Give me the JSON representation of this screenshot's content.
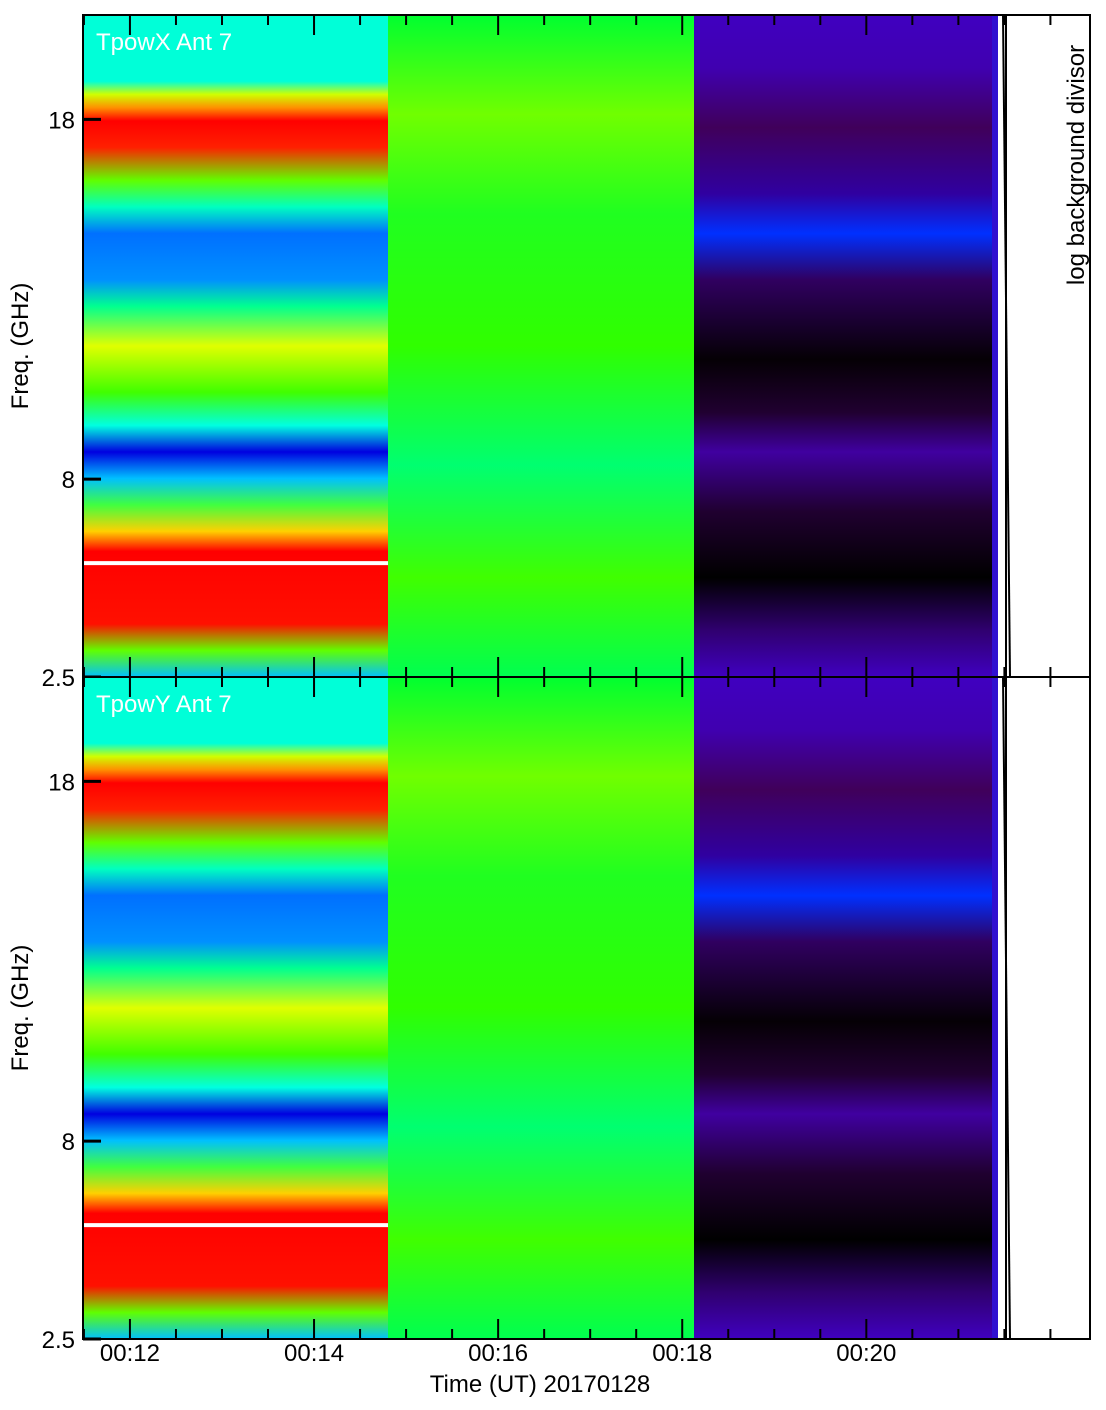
{
  "chart_data": [
    {
      "type": "heatmap",
      "title": "TpowX Ant 7",
      "ylabel": "Freq. (GHz)",
      "ylim": [
        2.5,
        20.9
      ],
      "yticks": [
        2.5,
        8.0,
        18.0
      ]
    },
    {
      "type": "heatmap",
      "title": "TpowY Ant 7",
      "ylabel": "Freq. (GHz)",
      "ylim": [
        2.5,
        20.9
      ],
      "yticks": [
        2.5,
        8.0,
        18.0
      ]
    }
  ],
  "xaxis": {
    "label": "Time (UT) 20170128",
    "xlim": [
      11.49,
      22.43
    ],
    "xticks": [
      {
        "value": 12,
        "label": "00:12"
      },
      {
        "value": 14,
        "label": "00:14"
      },
      {
        "value": 16,
        "label": "00:16"
      },
      {
        "value": 18,
        "label": "00:18"
      },
      {
        "value": 20,
        "label": "00:20"
      }
    ],
    "xminorticks": [
      11.5,
      12.5,
      13,
      13.5,
      14.5,
      15,
      15.5,
      16.5,
      17,
      17.5,
      18.5,
      19,
      19.5,
      20.5,
      21,
      21.5,
      22
    ]
  },
  "colorbar_label": "log background divisor"
}
